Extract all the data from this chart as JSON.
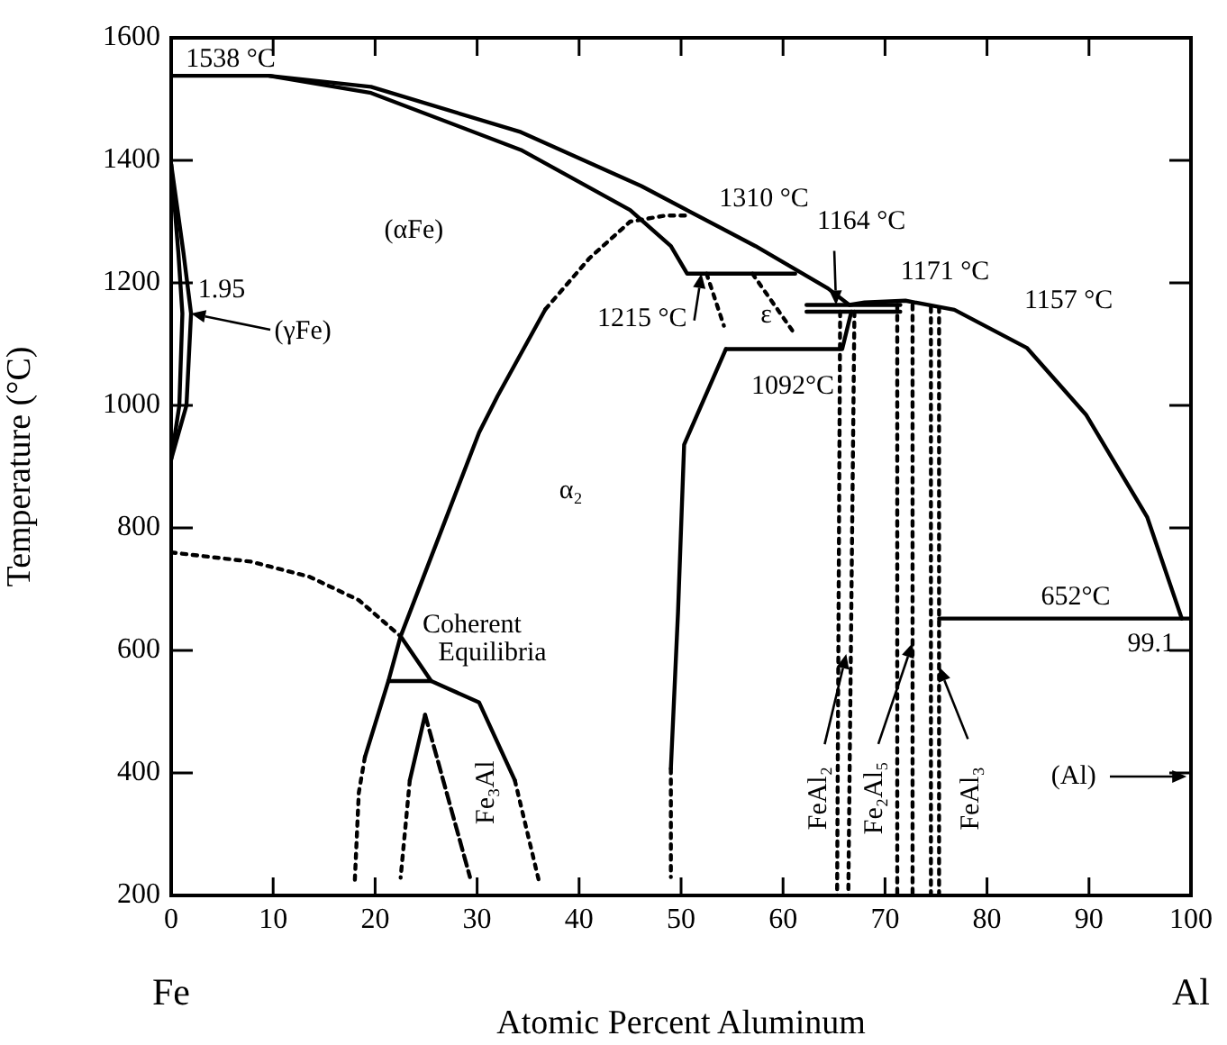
{
  "chart_data": {
    "type": "line",
    "xlabel": "Atomic Percent Aluminum",
    "ylabel": "Temperature (°C)",
    "xlim": [
      0,
      100
    ],
    "xticks": [
      0,
      10,
      20,
      30,
      40,
      50,
      60,
      70,
      80,
      90,
      100
    ],
    "ylim": [
      200,
      1600
    ],
    "yticks": [
      200,
      400,
      600,
      800,
      1000,
      1200,
      1400,
      1600
    ],
    "grid": false,
    "legend": false,
    "marker": "none",
    "series": [
      {
        "type": "line",
        "color": "#000000",
        "line_style": "solid",
        "x": [
          0,
          9.6,
          19.6,
          34.3,
          46.1,
          57.3,
          64.4,
          66.5,
          68,
          72,
          76.8,
          83.9,
          89.7,
          95.7,
          99.1
        ],
        "values": [
          1538,
          1538,
          1520,
          1446,
          1358,
          1260,
          1191,
          1164,
          1168,
          1171,
          1156,
          1094,
          985,
          818,
          652
        ]
      },
      {
        "type": "line",
        "color": "#000000",
        "line_style": "solid",
        "x": [
          9.6,
          19.6,
          34.3,
          45,
          49,
          50.6,
          61.2
        ],
        "values": [
          1538,
          1510,
          1417,
          1319,
          1260,
          1215,
          1215
        ]
      },
      {
        "type": "line",
        "color": "#000000",
        "line_style": "solid",
        "x": [
          36.7,
          32,
          30.2,
          26.8,
          22.5,
          21.3,
          19
        ],
        "values": [
          1157,
          1015,
          956,
          809,
          623,
          550,
          426
        ]
      },
      {
        "type": "line",
        "color": "#000000",
        "line_style": "dotted",
        "x": [
          36.7,
          41,
          45,
          48.5,
          51
        ],
        "values": [
          1157,
          1240,
          1300,
          1310,
          1310
        ]
      },
      {
        "type": "line",
        "color": "#000000",
        "line_style": "dotted",
        "x": [
          19,
          18.4,
          18
        ],
        "values": [
          426,
          368,
          221
        ]
      },
      {
        "type": "line",
        "color": "#000000",
        "line_style": "dotted",
        "x": [
          0,
          7.8,
          13.6,
          18.4,
          22.5
        ],
        "values": [
          760,
          745,
          720,
          682,
          623
        ]
      },
      {
        "type": "line",
        "color": "#000000",
        "line_style": "solid",
        "x": [
          22.5,
          25.5,
          30.2,
          33.7
        ],
        "values": [
          623,
          550,
          515,
          388
        ]
      },
      {
        "type": "line",
        "color": "#000000",
        "line_style": "solid",
        "x": [
          21.3,
          25.5
        ],
        "values": [
          550,
          550
        ]
      },
      {
        "type": "line",
        "color": "#000000",
        "line_style": "dotted",
        "x": [
          33.7,
          36.1
        ],
        "values": [
          388,
          221
        ]
      },
      {
        "type": "line",
        "color": "#000000",
        "line_style": "solid",
        "x": [
          24.9,
          23.4
        ],
        "values": [
          495,
          388
        ]
      },
      {
        "type": "line",
        "color": "#000000",
        "line_style": "dotted",
        "x": [
          23.4,
          22.5
        ],
        "values": [
          388,
          229
        ]
      },
      {
        "type": "line",
        "color": "#000000",
        "line_style": "dashed",
        "x": [
          24.9,
          29.3
        ],
        "values": [
          495,
          230
        ]
      },
      {
        "type": "line",
        "color": "#000000",
        "line_style": "solid",
        "x": [
          54.4,
          50.3,
          49.7,
          49
        ],
        "values": [
          1092,
          936,
          662,
          407
        ]
      },
      {
        "type": "line",
        "color": "#000000",
        "line_style": "dotted",
        "x": [
          49,
          49
        ],
        "values": [
          407,
          230
        ]
      },
      {
        "type": "line",
        "color": "#000000",
        "line_style": "solid",
        "x": [
          54.4,
          65.8,
          66.7
        ],
        "values": [
          1092,
          1092,
          1153
        ]
      },
      {
        "type": "line",
        "color": "#000000",
        "line_style": "dotted",
        "x": [
          52.5,
          54.2
        ],
        "values": [
          1215,
          1130
        ]
      },
      {
        "type": "line",
        "color": "#000000",
        "line_style": "dotted",
        "x": [
          57,
          61
        ],
        "values": [
          1215,
          1120
        ]
      },
      {
        "type": "line",
        "color": "#000000",
        "line_style": "solid",
        "x": [
          62.3,
          71.5
        ],
        "values": [
          1164,
          1164
        ]
      },
      {
        "type": "line",
        "color": "#000000",
        "line_style": "solid",
        "x": [
          62.3,
          71.5
        ],
        "values": [
          1153,
          1153
        ]
      },
      {
        "type": "line",
        "color": "#000000",
        "line_style": "dotted",
        "x": [
          65.6,
          65.3
        ],
        "values": [
          1153,
          200
        ]
      },
      {
        "type": "line",
        "color": "#000000",
        "line_style": "dotted",
        "x": [
          67,
          66.4
        ],
        "values": [
          1153,
          200
        ]
      },
      {
        "type": "line",
        "color": "#000000",
        "line_style": "dotted",
        "x": [
          71.2,
          71.2
        ],
        "values": [
          1164,
          200
        ]
      },
      {
        "type": "line",
        "color": "#000000",
        "line_style": "dotted",
        "x": [
          72.7,
          72.7
        ],
        "values": [
          1164,
          200
        ]
      },
      {
        "type": "line",
        "color": "#000000",
        "line_style": "dotted",
        "x": [
          74.5,
          74.5
        ],
        "values": [
          1160,
          200
        ]
      },
      {
        "type": "line",
        "color": "#000000",
        "line_style": "dotted",
        "x": [
          75.3,
          75.3
        ],
        "values": [
          1160,
          200
        ]
      },
      {
        "type": "line",
        "color": "#000000",
        "line_style": "solid",
        "x": [
          75.3,
          100
        ],
        "values": [
          652,
          652
        ]
      },
      {
        "type": "line",
        "color": "#000000",
        "line_style": "solid",
        "x": [
          0,
          1.2,
          1.95,
          1.5,
          0
        ],
        "values": [
          1394,
          1250,
          1150,
          1000,
          912
        ]
      },
      {
        "type": "line",
        "color": "#000000",
        "line_style": "solid",
        "x": [
          0,
          0.7,
          1.1,
          0.8,
          0
        ],
        "values": [
          1394,
          1250,
          1150,
          1000,
          912
        ]
      }
    ],
    "annotations": [
      {
        "text": "1538 °C",
        "x": 0,
        "y": 1538
      },
      {
        "text": "1.95",
        "x": 1.95,
        "y": 1150
      },
      {
        "text": "(γFe)",
        "x": 1.95,
        "y": 1150
      },
      "(αFe)",
      {
        "text": "1310 °C",
        "x": 50,
        "y": 1310
      },
      {
        "text": "1164 °C",
        "x": 65.2,
        "y": 1164
      },
      {
        "text": "1171 °C",
        "x": 72,
        "y": 1171
      },
      "1157 °C",
      {
        "text": "1215 °C",
        "x": 52,
        "y": 1215
      },
      {
        "text": "1092°C",
        "x": 56,
        "y": 1092
      },
      {
        "text": "ε",
        "x": 59.6,
        "y": 1147
      },
      "α₂",
      "Coherent",
      "Equilibria",
      "Fe₃Al",
      {
        "text": "652°C",
        "x": 88.7,
        "y": 652
      },
      {
        "text": "99.1",
        "x": 99.1,
        "y": 652
      },
      {
        "text": "FeAl₂",
        "x": 66.2,
        "y": 594
      },
      {
        "text": "Fe₂Al₅",
        "x": 72.7,
        "y": 612
      },
      {
        "text": "FeAl₃",
        "x": 75.3,
        "y": 573
      },
      "(Al)",
      "Fe",
      "Al"
    ]
  }
}
